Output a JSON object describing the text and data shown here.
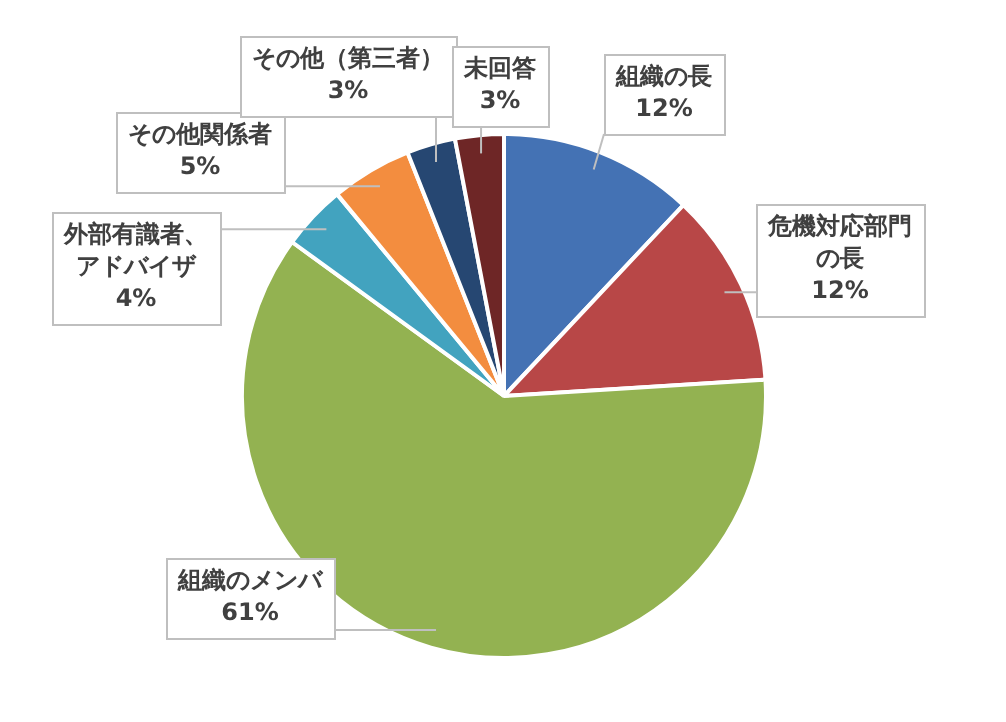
{
  "chart_data": {
    "type": "pie",
    "categories": [
      "組織の長",
      "危機対応部門の長",
      "組織のメンバ",
      "外部有識者、アドバイザ",
      "その他関係者",
      "その他（第三者）",
      "未回答"
    ],
    "values": [
      12,
      12,
      61,
      4,
      5,
      3,
      3
    ],
    "value_labels": [
      "12%",
      "12%",
      "61%",
      "4%",
      "5%",
      "3%",
      "3%"
    ],
    "colors": [
      "#4472b4",
      "#b84747",
      "#93b251",
      "#42a3bf",
      "#f38d3f",
      "#264772",
      "#6e2626"
    ],
    "legend": false
  }
}
